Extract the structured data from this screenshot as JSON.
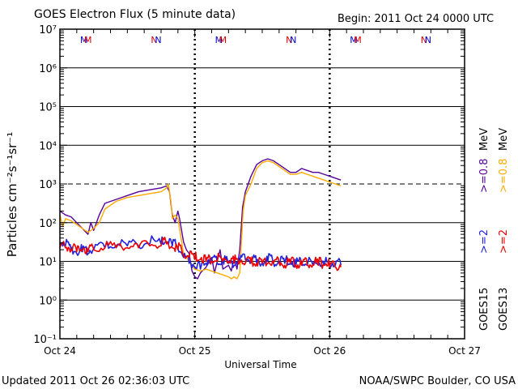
{
  "chart_data": {
    "type": "line",
    "title": "GOES Electron Flux (5 minute data)",
    "begin_label": "Begin: 2011 Oct 24 0000 UTC",
    "xlabel": "Universal Time",
    "ylabel": "Particles cm⁻²s⁻¹sr⁻¹",
    "yscale": "log",
    "ylim_exp": [
      -1,
      7
    ],
    "xlim_hours": [
      0,
      72
    ],
    "x_ticks": [
      {
        "hour": 0,
        "label": "Oct 24"
      },
      {
        "hour": 24,
        "label": "Oct 25"
      },
      {
        "hour": 48,
        "label": "Oct 26"
      },
      {
        "hour": 72,
        "label": "Oct 27"
      }
    ],
    "y_ticks": [
      {
        "exp": -1,
        "label": "10⁻¹"
      },
      {
        "exp": 0,
        "label": "10⁰"
      },
      {
        "exp": 1,
        "label": "10¹"
      },
      {
        "exp": 2,
        "label": "10²"
      },
      {
        "exp": 3,
        "label": "10³"
      },
      {
        "exp": 4,
        "label": "10⁴"
      },
      {
        "exp": 5,
        "label": "10⁵"
      },
      {
        "exp": 6,
        "label": "10⁶"
      },
      {
        "exp": 7,
        "label": "10⁷"
      }
    ],
    "threshold_exp": 3,
    "midnight_marker_hours": [
      24,
      48
    ],
    "top_markers": [
      {
        "hour": 5,
        "label": "M",
        "colors": [
          "#0000cc",
          "#dd0000"
        ]
      },
      {
        "hour": 17.5,
        "label": "N",
        "colors": [
          "#dd0000",
          "#0000cc"
        ]
      },
      {
        "hour": 29,
        "label": "M",
        "colors": [
          "#0000cc",
          "#dd0000"
        ]
      },
      {
        "hour": 41.5,
        "label": "N",
        "colors": [
          "#dd0000",
          "#0000cc"
        ]
      },
      {
        "hour": 53,
        "label": "M",
        "colors": [
          "#0000cc",
          "#dd0000"
        ]
      },
      {
        "hour": 65.5,
        "label": "N",
        "colors": [
          "#dd0000",
          "#0000cc"
        ]
      }
    ],
    "series": [
      {
        "name": ">=0.8 MeV",
        "satellite": "GOES15",
        "color": "#550099",
        "points": [
          [
            0,
            2.3
          ],
          [
            1,
            2.2
          ],
          [
            2,
            2.15
          ],
          [
            3,
            2.0
          ],
          [
            4,
            1.85
          ],
          [
            5,
            1.7
          ],
          [
            5.5,
            2.0
          ],
          [
            6,
            1.8
          ],
          [
            7,
            2.2
          ],
          [
            8,
            2.5
          ],
          [
            10,
            2.6
          ],
          [
            12,
            2.7
          ],
          [
            14,
            2.8
          ],
          [
            16,
            2.85
          ],
          [
            18,
            2.9
          ],
          [
            19,
            2.95
          ],
          [
            19.5,
            2.8
          ],
          [
            20,
            2.2
          ],
          [
            20.5,
            2.0
          ],
          [
            21,
            2.3
          ],
          [
            21.3,
            2.1
          ],
          [
            22,
            1.5
          ],
          [
            22.5,
            1.3
          ],
          [
            23,
            1.2
          ],
          [
            23.5,
            0.75
          ],
          [
            24,
            0.6
          ],
          [
            24.5,
            0.55
          ],
          [
            25,
            0.7
          ],
          [
            26,
            0.85
          ],
          [
            27,
            1.1
          ],
          [
            27.5,
            0.7
          ],
          [
            28,
            1.0
          ],
          [
            28.5,
            1.3
          ],
          [
            29,
            0.8
          ],
          [
            30,
            0.9
          ],
          [
            30.5,
            0.75
          ],
          [
            31,
            1.1
          ],
          [
            31.5,
            0.8
          ],
          [
            32,
            1.3
          ],
          [
            32.5,
            2.4
          ],
          [
            33,
            2.8
          ],
          [
            34,
            3.2
          ],
          [
            35,
            3.5
          ],
          [
            36,
            3.6
          ],
          [
            37,
            3.65
          ],
          [
            38,
            3.6
          ],
          [
            39,
            3.5
          ],
          [
            40,
            3.4
          ],
          [
            41,
            3.3
          ],
          [
            42,
            3.3
          ],
          [
            43,
            3.4
          ],
          [
            44,
            3.35
          ],
          [
            45,
            3.3
          ],
          [
            46,
            3.3
          ],
          [
            47,
            3.25
          ],
          [
            48,
            3.2
          ],
          [
            49,
            3.15
          ],
          [
            50,
            3.1
          ]
        ]
      },
      {
        "name": ">=0.8 MeV",
        "satellite": "GOES13",
        "color": "#ffaa00",
        "points": [
          [
            0,
            2.2
          ],
          [
            0.5,
            1.9
          ],
          [
            1,
            2.1
          ],
          [
            2,
            2.05
          ],
          [
            3,
            1.95
          ],
          [
            4,
            1.85
          ],
          [
            5,
            1.75
          ],
          [
            6,
            1.85
          ],
          [
            7,
            2.0
          ],
          [
            8,
            2.35
          ],
          [
            10,
            2.55
          ],
          [
            12,
            2.65
          ],
          [
            14,
            2.7
          ],
          [
            16,
            2.75
          ],
          [
            18,
            2.8
          ],
          [
            19,
            2.9
          ],
          [
            19.3,
            3.0
          ],
          [
            19.8,
            2.5
          ],
          [
            20,
            2.1
          ],
          [
            20.5,
            2.2
          ],
          [
            21,
            2.1
          ],
          [
            22,
            1.2
          ],
          [
            23,
            1.0
          ],
          [
            23.5,
            0.9
          ],
          [
            24,
            0.8
          ],
          [
            25,
            0.75
          ],
          [
            26,
            0.8
          ],
          [
            27,
            0.75
          ],
          [
            28,
            0.7
          ],
          [
            29,
            0.65
          ],
          [
            30,
            0.6
          ],
          [
            30.5,
            0.55
          ],
          [
            31,
            0.6
          ],
          [
            31.5,
            0.55
          ],
          [
            32,
            0.7
          ],
          [
            32.3,
            1.5
          ],
          [
            32.6,
            2.3
          ],
          [
            33,
            2.7
          ],
          [
            34,
            3.0
          ],
          [
            35,
            3.4
          ],
          [
            36,
            3.55
          ],
          [
            37,
            3.6
          ],
          [
            38,
            3.55
          ],
          [
            39,
            3.45
          ],
          [
            40,
            3.35
          ],
          [
            41,
            3.25
          ],
          [
            42,
            3.25
          ],
          [
            43,
            3.3
          ],
          [
            44,
            3.25
          ],
          [
            45,
            3.2
          ],
          [
            46,
            3.15
          ],
          [
            47,
            3.1
          ],
          [
            48,
            3.05
          ],
          [
            49,
            3.0
          ],
          [
            50,
            2.95
          ]
        ]
      },
      {
        "name": ">=2 MeV",
        "satellite": "GOES15",
        "color": "#2222dd",
        "points": [
          [
            0,
            1.5
          ],
          [
            1,
            1.4
          ],
          [
            2,
            1.3
          ],
          [
            3,
            1.2
          ],
          [
            4,
            1.25
          ],
          [
            5,
            1.2
          ],
          [
            6,
            1.3
          ],
          [
            8,
            1.35
          ],
          [
            10,
            1.4
          ],
          [
            12,
            1.4
          ],
          [
            14,
            1.4
          ],
          [
            16,
            1.45
          ],
          [
            18,
            1.45
          ],
          [
            19,
            1.5
          ],
          [
            20,
            1.4
          ],
          [
            21,
            1.35
          ],
          [
            22,
            1.1
          ],
          [
            23,
            0.95
          ],
          [
            24,
            0.85
          ],
          [
            25,
            0.8
          ],
          [
            26,
            0.95
          ],
          [
            27,
            1.05
          ],
          [
            28,
            0.95
          ],
          [
            29,
            1.0
          ],
          [
            30,
            0.95
          ],
          [
            31,
            0.9
          ],
          [
            32,
            1.0
          ],
          [
            33,
            1.05
          ],
          [
            34,
            1.0
          ],
          [
            35,
            0.95
          ],
          [
            36,
            0.95
          ],
          [
            37,
            1.0
          ],
          [
            38,
            0.95
          ],
          [
            39,
            0.95
          ],
          [
            40,
            0.95
          ],
          [
            41,
            0.95
          ],
          [
            42,
            0.9
          ],
          [
            43,
            0.95
          ],
          [
            44,
            0.9
          ],
          [
            45,
            0.9
          ],
          [
            46,
            0.9
          ],
          [
            47,
            0.9
          ],
          [
            48,
            0.9
          ],
          [
            49,
            0.9
          ],
          [
            50,
            0.9
          ]
        ]
      },
      {
        "name": ">=2 MeV",
        "satellite": "GOES13",
        "color": "#ee0000",
        "points": [
          [
            0,
            1.35
          ],
          [
            1,
            1.35
          ],
          [
            2,
            1.3
          ],
          [
            3,
            1.25
          ],
          [
            4,
            1.3
          ],
          [
            5,
            1.25
          ],
          [
            6,
            1.3
          ],
          [
            8,
            1.35
          ],
          [
            10,
            1.35
          ],
          [
            12,
            1.35
          ],
          [
            14,
            1.35
          ],
          [
            16,
            1.4
          ],
          [
            18,
            1.4
          ],
          [
            19,
            1.45
          ],
          [
            20,
            1.35
          ],
          [
            21,
            1.3
          ],
          [
            22,
            1.15
          ],
          [
            23,
            1.1
          ],
          [
            24,
            1.05
          ],
          [
            25,
            1.05
          ],
          [
            26,
            1.0
          ],
          [
            27,
            1.0
          ],
          [
            28,
            1.0
          ],
          [
            29,
            1.0
          ],
          [
            30,
            1.0
          ],
          [
            31,
            0.95
          ],
          [
            32,
            1.0
          ],
          [
            33,
            0.95
          ],
          [
            34,
            0.95
          ],
          [
            35,
            0.95
          ],
          [
            36,
            0.95
          ],
          [
            37,
            0.95
          ],
          [
            38,
            0.95
          ],
          [
            39,
            0.95
          ],
          [
            40,
            0.9
          ],
          [
            41,
            0.95
          ],
          [
            42,
            0.9
          ],
          [
            43,
            0.9
          ],
          [
            44,
            0.9
          ],
          [
            45,
            0.9
          ],
          [
            46,
            0.9
          ],
          [
            47,
            0.9
          ],
          [
            48,
            0.85
          ],
          [
            49,
            0.85
          ],
          [
            50,
            0.85
          ]
        ]
      }
    ],
    "right_legend": [
      {
        "satellite": "GOES15",
        "energy": ">=2",
        "color": "#2222dd"
      },
      {
        "satellite": "GOES15",
        "energy": ">=0.8",
        "color": "#550099"
      },
      {
        "satellite": "GOES13",
        "energy": ">=2",
        "color": "#ee0000"
      },
      {
        "satellite": "GOES13",
        "energy": ">=0.8",
        "color": "#ffaa00"
      }
    ],
    "legend_unit": "MeV"
  },
  "footer": {
    "updated": "Updated 2011 Oct 26 02:36:03 UTC",
    "credit": "NOAA/SWPC Boulder, CO USA"
  }
}
